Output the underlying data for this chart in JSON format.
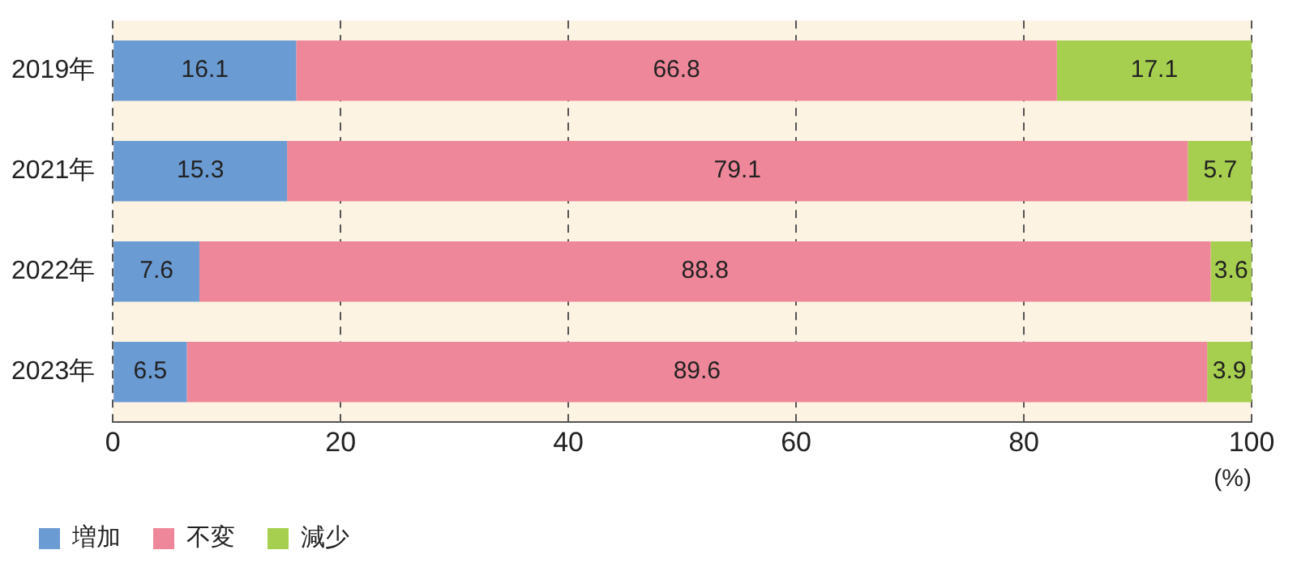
{
  "chart_data": {
    "type": "bar",
    "orientation": "horizontal",
    "stacked": true,
    "xlabel": "(%)",
    "categories": [
      "2019年",
      "2021年",
      "2022年",
      "2023年"
    ],
    "series": [
      {
        "name": "増加",
        "color": "#6b9bd3",
        "values": [
          16.1,
          15.3,
          7.6,
          6.5
        ]
      },
      {
        "name": "不変",
        "color": "#ee8799",
        "values": [
          66.8,
          79.1,
          88.8,
          89.6
        ]
      },
      {
        "name": "減少",
        "color": "#a7cf4f",
        "values": [
          17.1,
          5.7,
          3.6,
          3.9
        ]
      }
    ],
    "xlim": [
      0,
      100
    ],
    "xticks": [
      0,
      20,
      40,
      60,
      80,
      100
    ],
    "grid": "x",
    "legend": "bottom left",
    "data_labels": true
  }
}
